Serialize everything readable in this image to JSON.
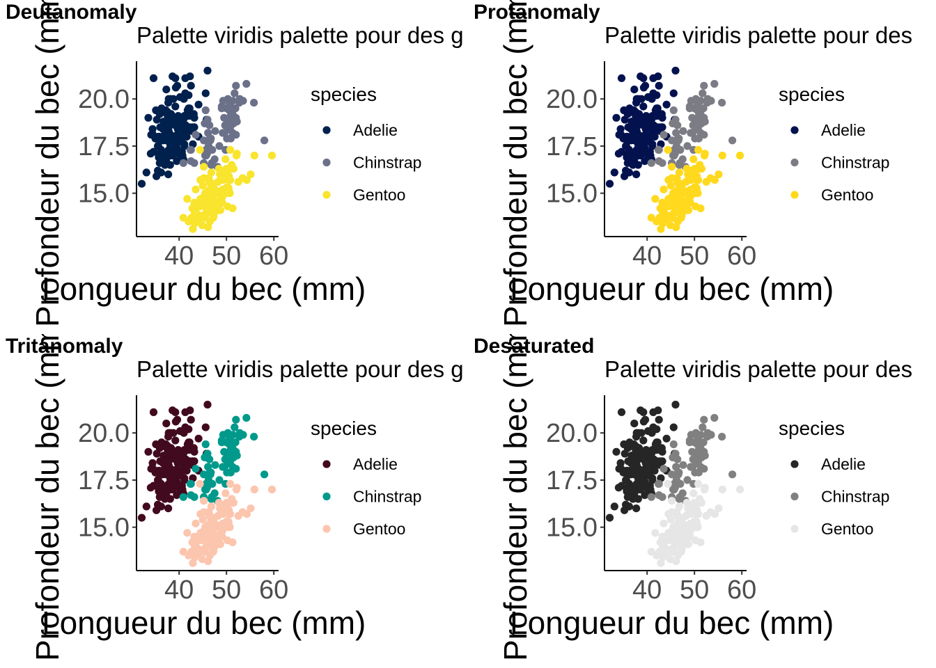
{
  "chart_data": [
    {
      "type": "scatter",
      "panel": "Deutanomaly",
      "title": "Palette viridis palette pour des g",
      "xlabel": "Longueur du bec (mm)",
      "ylabel": "Profondeur du bec (mm)",
      "xlim": [
        31,
        61
      ],
      "ylim": [
        12.7,
        22
      ],
      "xticks": [
        40,
        50,
        60
      ],
      "yticks": [
        15.0,
        17.5,
        20.0
      ],
      "xtick_labels": [
        "40",
        "50",
        "60"
      ],
      "ytick_labels": [
        "15.0",
        "17.5",
        "20.0"
      ],
      "grid": false,
      "legend_position": "right",
      "legend_title": "species",
      "series": [
        {
          "name": "Adelie",
          "color": "#00204d"
        },
        {
          "name": "Chinstrap",
          "color": "#6b7189"
        },
        {
          "name": "Gentoo",
          "color": "#f9e42e"
        }
      ]
    },
    {
      "type": "scatter",
      "panel": "Protanomaly",
      "title": "Palette viridis palette pour des",
      "xlabel": "Longueur du bec (mm)",
      "ylabel": "Profondeur du bec (mm)",
      "xlim": [
        31,
        61
      ],
      "ylim": [
        12.7,
        22
      ],
      "xticks": [
        40,
        50,
        60
      ],
      "yticks": [
        15.0,
        17.5,
        20.0
      ],
      "xtick_labels": [
        "40",
        "50",
        "60"
      ],
      "ytick_labels": [
        "15.0",
        "17.5",
        "20.0"
      ],
      "grid": false,
      "legend_position": "right",
      "legend_title": "species",
      "series": [
        {
          "name": "Adelie",
          "color": "#03124f"
        },
        {
          "name": "Chinstrap",
          "color": "#7c7c85"
        },
        {
          "name": "Gentoo",
          "color": "#ffd91e"
        }
      ]
    },
    {
      "type": "scatter",
      "panel": "Tritanomaly",
      "title": "Palette viridis palette pour des g",
      "xlabel": "Longueur du bec (mm)",
      "ylabel": "Profondeur du bec (mm)",
      "xlim": [
        31,
        61
      ],
      "ylim": [
        12.7,
        22
      ],
      "xticks": [
        40,
        50,
        60
      ],
      "yticks": [
        15.0,
        17.5,
        20.0
      ],
      "xtick_labels": [
        "40",
        "50",
        "60"
      ],
      "ytick_labels": [
        "15.0",
        "17.5",
        "20.0"
      ],
      "grid": false,
      "legend_position": "right",
      "legend_title": "species",
      "series": [
        {
          "name": "Adelie",
          "color": "#420a1e"
        },
        {
          "name": "Chinstrap",
          "color": "#00998b"
        },
        {
          "name": "Gentoo",
          "color": "#fcc5ae"
        }
      ]
    },
    {
      "type": "scatter",
      "panel": "Desaturated",
      "title": "Palette viridis palette pour des",
      "xlabel": "Longueur du bec (mm)",
      "ylabel": "Profondeur du bec (mm)",
      "xlim": [
        31,
        61
      ],
      "ylim": [
        12.7,
        22
      ],
      "xticks": [
        40,
        50,
        60
      ],
      "yticks": [
        15.0,
        17.5,
        20.0
      ],
      "xtick_labels": [
        "40",
        "50",
        "60"
      ],
      "ytick_labels": [
        "15.0",
        "17.5",
        "20.0"
      ],
      "grid": false,
      "legend_position": "right",
      "legend_title": "species",
      "series": [
        {
          "name": "Adelie",
          "color": "#262626"
        },
        {
          "name": "Chinstrap",
          "color": "#808080"
        },
        {
          "name": "Gentoo",
          "color": "#e6e6e6"
        }
      ]
    }
  ],
  "points": {
    "Adelie": [
      [
        39.1,
        18.7
      ],
      [
        39.5,
        17.4
      ],
      [
        40.3,
        18.0
      ],
      [
        36.7,
        19.3
      ],
      [
        39.3,
        20.6
      ],
      [
        38.9,
        17.8
      ],
      [
        39.2,
        19.6
      ],
      [
        34.1,
        18.1
      ],
      [
        42.0,
        20.2
      ],
      [
        37.8,
        17.1
      ],
      [
        37.8,
        17.3
      ],
      [
        41.1,
        17.6
      ],
      [
        38.6,
        21.2
      ],
      [
        34.6,
        21.1
      ],
      [
        36.6,
        17.8
      ],
      [
        38.7,
        19.0
      ],
      [
        42.5,
        20.7
      ],
      [
        34.4,
        18.4
      ],
      [
        46.0,
        21.5
      ],
      [
        37.8,
        18.3
      ],
      [
        37.7,
        18.7
      ],
      [
        35.9,
        19.2
      ],
      [
        38.2,
        18.1
      ],
      [
        38.8,
        17.2
      ],
      [
        35.3,
        18.9
      ],
      [
        40.6,
        18.6
      ],
      [
        40.5,
        17.9
      ],
      [
        37.9,
        18.6
      ],
      [
        40.5,
        18.9
      ],
      [
        39.5,
        16.7
      ],
      [
        37.2,
        18.1
      ],
      [
        39.5,
        17.8
      ],
      [
        40.9,
        18.9
      ],
      [
        36.4,
        17.0
      ],
      [
        39.2,
        21.1
      ],
      [
        38.8,
        20.0
      ],
      [
        42.2,
        18.5
      ],
      [
        37.6,
        19.3
      ],
      [
        39.8,
        19.1
      ],
      [
        36.5,
        18.0
      ],
      [
        40.8,
        18.4
      ],
      [
        36.0,
        18.5
      ],
      [
        44.1,
        19.7
      ],
      [
        37.0,
        16.9
      ],
      [
        39.6,
        18.8
      ],
      [
        41.1,
        19.0
      ],
      [
        37.5,
        18.9
      ],
      [
        36.0,
        17.9
      ],
      [
        42.3,
        21.2
      ],
      [
        39.6,
        17.7
      ],
      [
        40.1,
        18.9
      ],
      [
        35.0,
        17.9
      ],
      [
        42.0,
        19.5
      ],
      [
        34.5,
        18.1
      ],
      [
        41.4,
        18.6
      ],
      [
        39.0,
        17.5
      ],
      [
        40.6,
        18.8
      ],
      [
        36.5,
        16.6
      ],
      [
        37.6,
        19.1
      ],
      [
        35.7,
        16.9
      ],
      [
        41.3,
        21.1
      ],
      [
        37.6,
        17.0
      ],
      [
        41.1,
        18.2
      ],
      [
        36.4,
        17.1
      ],
      [
        41.6,
        18.0
      ],
      [
        35.5,
        16.2
      ],
      [
        41.1,
        19.1
      ],
      [
        35.9,
        16.6
      ],
      [
        41.8,
        19.4
      ],
      [
        33.5,
        19.0
      ],
      [
        39.7,
        18.4
      ],
      [
        39.6,
        17.2
      ],
      [
        45.8,
        18.9
      ],
      [
        35.5,
        17.5
      ],
      [
        42.8,
        18.5
      ],
      [
        40.9,
        16.8
      ],
      [
        37.2,
        19.4
      ],
      [
        36.2,
        16.1
      ],
      [
        42.1,
        19.1
      ],
      [
        34.6,
        17.2
      ],
      [
        42.9,
        17.6
      ],
      [
        36.7,
        18.8
      ],
      [
        35.1,
        19.4
      ],
      [
        37.3,
        17.8
      ],
      [
        41.3,
        20.3
      ],
      [
        36.3,
        19.5
      ],
      [
        36.9,
        18.6
      ],
      [
        38.3,
        19.2
      ],
      [
        38.9,
        18.8
      ],
      [
        35.7,
        18.0
      ],
      [
        41.1,
        18.1
      ],
      [
        34.0,
        17.1
      ],
      [
        39.6,
        18.1
      ],
      [
        36.2,
        17.3
      ],
      [
        40.8,
        18.9
      ],
      [
        38.1,
        18.6
      ],
      [
        40.3,
        18.5
      ],
      [
        33.1,
        16.1
      ],
      [
        43.2,
        18.5
      ],
      [
        35.0,
        17.9
      ],
      [
        41.0,
        20.0
      ],
      [
        37.7,
        16.0
      ],
      [
        37.8,
        20.0
      ],
      [
        37.9,
        18.6
      ],
      [
        39.7,
        18.9
      ],
      [
        38.6,
        17.2
      ],
      [
        38.2,
        20.0
      ],
      [
        38.1,
        17.0
      ],
      [
        43.2,
        19.0
      ],
      [
        38.1,
        16.5
      ],
      [
        45.6,
        20.3
      ],
      [
        39.7,
        17.7
      ],
      [
        42.2,
        19.5
      ],
      [
        39.6,
        20.7
      ],
      [
        42.7,
        18.3
      ],
      [
        38.6,
        17.0
      ],
      [
        37.3,
        20.5
      ],
      [
        35.7,
        17.0
      ],
      [
        41.1,
        18.6
      ],
      [
        36.2,
        17.2
      ],
      [
        37.7,
        19.8
      ],
      [
        40.2,
        17.0
      ],
      [
        41.4,
        18.5
      ],
      [
        35.2,
        15.9
      ],
      [
        40.6,
        19.0
      ],
      [
        38.8,
        17.6
      ],
      [
        41.5,
        18.3
      ],
      [
        39.0,
        17.1
      ],
      [
        44.1,
        18.0
      ],
      [
        38.5,
        17.9
      ],
      [
        43.1,
        19.2
      ],
      [
        36.8,
        18.5
      ],
      [
        37.5,
        18.5
      ],
      [
        38.1,
        17.6
      ],
      [
        41.1,
        17.5
      ],
      [
        35.6,
        17.5
      ],
      [
        40.2,
        20.1
      ],
      [
        37.0,
        16.5
      ],
      [
        39.7,
        17.9
      ],
      [
        40.2,
        17.1
      ],
      [
        40.6,
        17.2
      ],
      [
        32.1,
        15.5
      ],
      [
        40.7,
        17.0
      ],
      [
        37.3,
        16.8
      ],
      [
        39.0,
        18.7
      ],
      [
        39.2,
        18.6
      ],
      [
        36.6,
        18.4
      ],
      [
        36.0,
        17.8
      ],
      [
        37.8,
        18.1
      ],
      [
        36.0,
        17.1
      ],
      [
        41.5,
        18.5
      ]
    ],
    "Chinstrap": [
      [
        46.5,
        17.9
      ],
      [
        50.0,
        19.5
      ],
      [
        51.3,
        19.2
      ],
      [
        45.4,
        18.7
      ],
      [
        52.7,
        19.8
      ],
      [
        45.2,
        17.8
      ],
      [
        46.1,
        18.2
      ],
      [
        51.3,
        18.2
      ],
      [
        46.0,
        18.9
      ],
      [
        51.3,
        19.9
      ],
      [
        46.6,
        17.8
      ],
      [
        51.7,
        20.3
      ],
      [
        47.0,
        17.3
      ],
      [
        52.0,
        18.1
      ],
      [
        45.9,
        17.1
      ],
      [
        50.5,
        19.6
      ],
      [
        50.3,
        20.0
      ],
      [
        58.0,
        17.8
      ],
      [
        46.4,
        18.6
      ],
      [
        49.2,
        18.2
      ],
      [
        42.4,
        17.3
      ],
      [
        48.5,
        17.5
      ],
      [
        43.2,
        16.6
      ],
      [
        50.6,
        19.4
      ],
      [
        46.7,
        17.9
      ],
      [
        52.0,
        19.0
      ],
      [
        50.5,
        18.4
      ],
      [
        49.5,
        19.0
      ],
      [
        46.4,
        17.8
      ],
      [
        52.8,
        20.0
      ],
      [
        40.9,
        16.6
      ],
      [
        54.2,
        20.8
      ],
      [
        42.5,
        16.7
      ],
      [
        51.0,
        18.8
      ],
      [
        49.7,
        18.6
      ],
      [
        47.5,
        16.8
      ],
      [
        47.6,
        18.3
      ],
      [
        52.0,
        20.7
      ],
      [
        46.9,
        16.6
      ],
      [
        53.5,
        19.9
      ],
      [
        49.0,
        19.5
      ],
      [
        46.2,
        17.5
      ],
      [
        50.9,
        19.1
      ],
      [
        45.5,
        17.0
      ],
      [
        50.9,
        17.9
      ],
      [
        50.8,
        18.5
      ],
      [
        50.1,
        17.9
      ],
      [
        49.0,
        19.6
      ],
      [
        51.5,
        18.7
      ],
      [
        49.8,
        17.3
      ],
      [
        48.1,
        16.4
      ],
      [
        51.4,
        19.0
      ],
      [
        45.7,
        17.3
      ],
      [
        50.7,
        19.7
      ],
      [
        42.5,
        17.3
      ],
      [
        52.2,
        18.8
      ],
      [
        45.2,
        16.6
      ],
      [
        49.3,
        19.9
      ],
      [
        50.2,
        18.8
      ],
      [
        45.6,
        19.4
      ],
      [
        51.9,
        19.5
      ],
      [
        46.8,
        16.5
      ],
      [
        45.7,
        17.0
      ],
      [
        55.8,
        19.8
      ],
      [
        43.5,
        18.1
      ],
      [
        49.6,
        18.2
      ],
      [
        50.8,
        19.0
      ],
      [
        50.2,
        18.7
      ]
    ],
    "Gentoo": [
      [
        46.1,
        13.2
      ],
      [
        50.0,
        16.3
      ],
      [
        48.7,
        14.1
      ],
      [
        50.0,
        15.2
      ],
      [
        47.6,
        14.5
      ],
      [
        46.5,
        13.5
      ],
      [
        45.4,
        14.6
      ],
      [
        46.7,
        15.3
      ],
      [
        43.3,
        13.4
      ],
      [
        46.8,
        15.4
      ],
      [
        40.9,
        13.7
      ],
      [
        49.0,
        16.1
      ],
      [
        45.5,
        13.7
      ],
      [
        48.4,
        14.6
      ],
      [
        45.8,
        14.6
      ],
      [
        49.3,
        15.7
      ],
      [
        42.0,
        13.5
      ],
      [
        49.2,
        15.2
      ],
      [
        46.2,
        14.5
      ],
      [
        48.7,
        15.1
      ],
      [
        50.2,
        14.3
      ],
      [
        45.1,
        14.5
      ],
      [
        46.5,
        14.5
      ],
      [
        46.3,
        15.8
      ],
      [
        42.9,
        13.1
      ],
      [
        46.1,
        15.1
      ],
      [
        44.5,
        14.3
      ],
      [
        47.8,
        15.0
      ],
      [
        48.2,
        14.3
      ],
      [
        50.0,
        15.3
      ],
      [
        47.3,
        15.3
      ],
      [
        42.8,
        14.2
      ],
      [
        45.1,
        14.5
      ],
      [
        59.6,
        17.0
      ],
      [
        49.1,
        14.8
      ],
      [
        48.4,
        16.3
      ],
      [
        42.6,
        13.7
      ],
      [
        44.4,
        17.3
      ],
      [
        44.0,
        13.6
      ],
      [
        48.7,
        15.7
      ],
      [
        42.7,
        13.7
      ],
      [
        49.6,
        16.0
      ],
      [
        45.3,
        13.7
      ],
      [
        49.6,
        15.0
      ],
      [
        50.5,
        15.9
      ],
      [
        43.6,
        13.9
      ],
      [
        45.5,
        13.9
      ],
      [
        50.5,
        15.9
      ],
      [
        44.9,
        13.3
      ],
      [
        45.2,
        15.8
      ],
      [
        46.6,
        14.2
      ],
      [
        48.5,
        14.1
      ],
      [
        45.1,
        14.4
      ],
      [
        50.1,
        15.0
      ],
      [
        46.5,
        14.4
      ],
      [
        45.0,
        15.4
      ],
      [
        43.8,
        13.9
      ],
      [
        45.5,
        15.0
      ],
      [
        43.2,
        14.5
      ],
      [
        50.4,
        15.3
      ],
      [
        45.3,
        13.8
      ],
      [
        46.2,
        14.9
      ],
      [
        45.7,
        13.9
      ],
      [
        54.3,
        15.7
      ],
      [
        45.8,
        14.2
      ],
      [
        49.8,
        16.8
      ],
      [
        46.2,
        14.4
      ],
      [
        49.5,
        16.2
      ],
      [
        43.5,
        14.2
      ],
      [
        50.7,
        15.0
      ],
      [
        47.7,
        15.0
      ],
      [
        46.4,
        15.6
      ],
      [
        48.2,
        15.6
      ],
      [
        46.5,
        14.8
      ],
      [
        46.4,
        15.0
      ],
      [
        48.6,
        16.0
      ],
      [
        47.5,
        14.2
      ],
      [
        51.1,
        16.3
      ],
      [
        45.2,
        13.8
      ],
      [
        45.2,
        16.4
      ],
      [
        49.1,
        14.5
      ],
      [
        52.5,
        15.6
      ],
      [
        47.4,
        14.6
      ],
      [
        50.0,
        15.9
      ],
      [
        44.9,
        13.8
      ],
      [
        50.8,
        17.3
      ],
      [
        43.4,
        14.4
      ],
      [
        51.3,
        14.2
      ],
      [
        47.5,
        14.0
      ],
      [
        52.1,
        17.0
      ],
      [
        47.5,
        15.0
      ],
      [
        52.2,
        17.1
      ],
      [
        45.5,
        14.5
      ],
      [
        49.5,
        16.1
      ],
      [
        44.5,
        14.7
      ],
      [
        50.8,
        15.7
      ],
      [
        49.4,
        15.8
      ],
      [
        46.9,
        14.6
      ],
      [
        48.4,
        14.4
      ],
      [
        51.1,
        16.5
      ],
      [
        48.5,
        15.0
      ],
      [
        55.9,
        17.0
      ],
      [
        47.2,
        15.5
      ],
      [
        49.1,
        15.0
      ],
      [
        47.3,
        13.8
      ],
      [
        46.8,
        16.1
      ],
      [
        41.7,
        14.7
      ],
      [
        53.4,
        15.8
      ],
      [
        43.3,
        14.0
      ],
      [
        48.1,
        15.1
      ],
      [
        50.5,
        15.2
      ],
      [
        49.8,
        15.9
      ],
      [
        43.5,
        15.2
      ],
      [
        51.5,
        16.3
      ],
      [
        46.2,
        14.1
      ],
      [
        55.1,
        16.0
      ],
      [
        44.5,
        15.7
      ],
      [
        48.8,
        16.2
      ],
      [
        47.2,
        13.7
      ],
      [
        46.8,
        14.3
      ],
      [
        50.4,
        15.7
      ],
      [
        45.2,
        14.8
      ],
      [
        49.9,
        16.1
      ]
    ]
  }
}
